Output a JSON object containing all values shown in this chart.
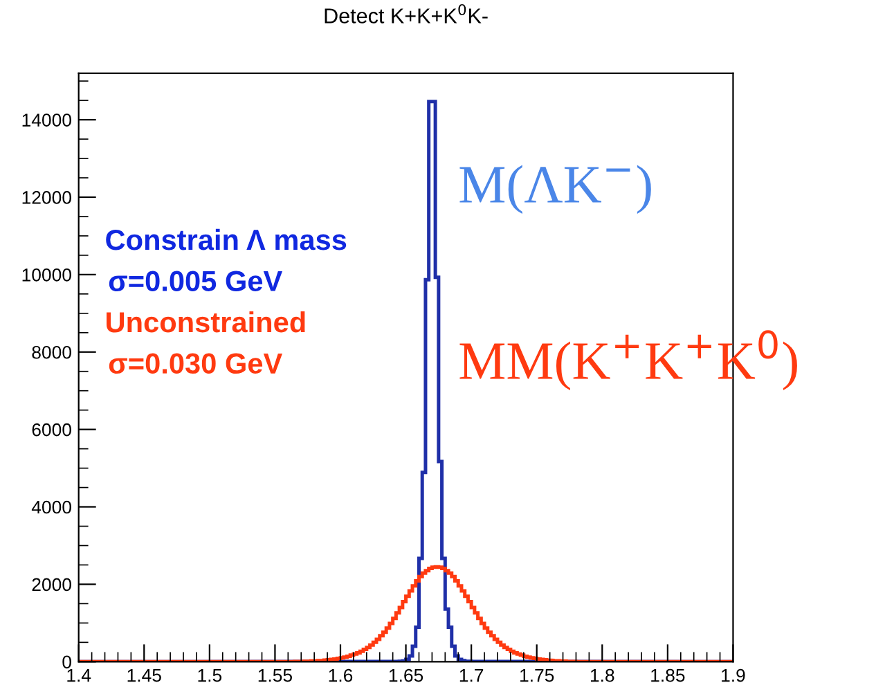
{
  "chart_data": {
    "type": "histogram",
    "title": "Detect K+K+K$^{0}$K-",
    "bins": [
      1.4,
      1.45,
      1.5,
      1.55,
      1.5525,
      1.555,
      1.5575,
      1.56,
      1.5625,
      1.565,
      1.5675,
      1.57,
      1.5725,
      1.575,
      1.5775,
      1.58,
      1.5825,
      1.585,
      1.5875,
      1.59,
      1.5925,
      1.595,
      1.5975,
      1.6,
      1.6025,
      1.605,
      1.6075,
      1.61,
      1.6125,
      1.615,
      1.6175,
      1.62,
      1.6225,
      1.625,
      1.6275,
      1.63,
      1.6325,
      1.635,
      1.6375,
      1.64,
      1.6425,
      1.645,
      1.6475,
      1.65,
      1.6525,
      1.655,
      1.6575,
      1.66,
      1.6625,
      1.665,
      1.6675,
      1.67,
      1.6725,
      1.675,
      1.6775,
      1.68,
      1.6825,
      1.685,
      1.6875,
      1.69,
      1.6925,
      1.695,
      1.6975,
      1.7,
      1.7025,
      1.705,
      1.7075,
      1.71,
      1.7125,
      1.715,
      1.7175,
      1.72,
      1.7225,
      1.725,
      1.7275,
      1.73,
      1.7325,
      1.735,
      1.7375,
      1.74,
      1.7425,
      1.745,
      1.7475,
      1.75,
      1.7525,
      1.755,
      1.7575,
      1.76,
      1.7625,
      1.765,
      1.7675,
      1.77,
      1.7725,
      1.775,
      1.7775,
      1.78,
      1.7825,
      1.785,
      1.7875,
      1.79,
      1.7925,
      1.795,
      1.7975,
      1.8,
      1.85,
      1.9
    ],
    "series": [
      {
        "name": "M(ΛK$^{−}$)",
        "color": "#1f2fa8",
        "values": [
          0,
          0,
          0,
          0,
          0,
          0,
          0,
          0,
          0,
          0,
          0,
          0,
          0,
          0,
          0,
          0,
          0,
          0,
          0,
          0,
          0,
          0,
          0,
          0,
          0,
          0,
          0,
          0,
          0,
          0,
          0,
          0,
          0,
          0,
          0,
          0,
          0,
          0,
          0,
          0,
          5,
          10,
          20,
          60,
          150,
          400,
          890,
          2670,
          4890,
          9870,
          14470,
          14470,
          9930,
          5170,
          2670,
          1360,
          890,
          400,
          150,
          60,
          30,
          15,
          10,
          5,
          0,
          0,
          0,
          0,
          0,
          0,
          0,
          0,
          0,
          0,
          0,
          0,
          0,
          0,
          0,
          0,
          0,
          0,
          0,
          0,
          0,
          0,
          0,
          0,
          0,
          0,
          0,
          0,
          0,
          0,
          0,
          0,
          0,
          0,
          0,
          0,
          0,
          0,
          0,
          0,
          0
        ]
      },
      {
        "name": "MM(K$^{+}$K$^{+}$K$^{0}$)",
        "color": "#ff3a10",
        "values": [
          0,
          0,
          1,
          2,
          2,
          3,
          3,
          4,
          5,
          6,
          8,
          10,
          12,
          15,
          20,
          25,
          30,
          35,
          40,
          50,
          60,
          70,
          85,
          100,
          120,
          140,
          170,
          200,
          230,
          270,
          320,
          370,
          430,
          500,
          580,
          670,
          760,
          870,
          990,
          1120,
          1260,
          1400,
          1550,
          1690,
          1830,
          1960,
          2090,
          2200,
          2290,
          2350,
          2410,
          2440,
          2450,
          2440,
          2410,
          2350,
          2290,
          2200,
          2090,
          1960,
          1830,
          1690,
          1550,
          1400,
          1260,
          1120,
          990,
          870,
          760,
          670,
          580,
          500,
          430,
          370,
          320,
          270,
          230,
          200,
          170,
          140,
          120,
          100,
          85,
          70,
          60,
          50,
          40,
          35,
          30,
          25,
          20,
          15,
          12,
          10,
          8,
          6,
          5,
          4,
          3,
          3,
          2,
          2,
          2,
          1,
          0
        ]
      }
    ],
    "annotations": [
      "Constrain Λ mass",
      "σ=0.005 GeV",
      "Unconstrained",
      "σ=0.030 GeV"
    ],
    "xlim": [
      1.4,
      1.9
    ],
    "ylim": [
      0,
      15200
    ],
    "xticks": [
      1.4,
      1.45,
      1.5,
      1.55,
      1.6,
      1.65,
      1.7,
      1.75,
      1.8,
      1.85,
      1.9
    ],
    "yticks": [
      0,
      2000,
      4000,
      6000,
      8000,
      10000,
      12000,
      14000
    ],
    "grid": false,
    "legend": false
  }
}
